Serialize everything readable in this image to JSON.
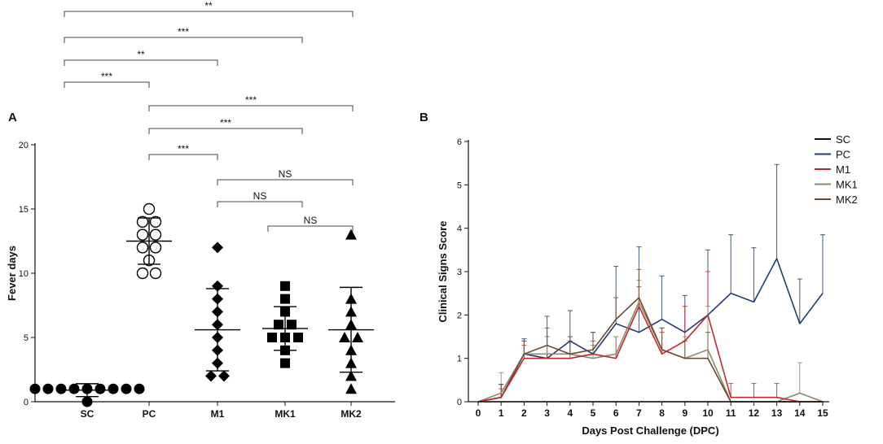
{
  "chart_data": [
    {
      "panel": "A",
      "type": "scatter",
      "ylabel": "Fever days",
      "xlabel": "",
      "ylim": [
        0,
        20
      ],
      "yticks": [
        0,
        5,
        10,
        15,
        20
      ],
      "categories": [
        "SC",
        "PC",
        "M1",
        "MK1",
        "MK2"
      ],
      "series": [
        {
          "name": "SC",
          "marker": "circle-filled",
          "values": [
            1,
            1,
            1,
            1,
            1,
            1,
            1,
            1,
            1,
            0
          ],
          "mean": 0.9,
          "sd": 0.5
        },
        {
          "name": "PC",
          "marker": "circle-open",
          "values": [
            15,
            14,
            14,
            13,
            13,
            12,
            12,
            11,
            10,
            10
          ],
          "mean": 12.5,
          "sd": 1.8
        },
        {
          "name": "M1",
          "marker": "diamond",
          "values": [
            12,
            9,
            8,
            7,
            6,
            5,
            4,
            3,
            2,
            2
          ],
          "mean": 5.6,
          "sd": 3.2
        },
        {
          "name": "MK1",
          "marker": "square",
          "values": [
            9,
            8,
            7,
            6,
            6,
            5,
            5,
            5,
            4,
            3
          ],
          "mean": 5.7,
          "sd": 1.7
        },
        {
          "name": "MK2",
          "marker": "triangle",
          "values": [
            13,
            8,
            7,
            6,
            5,
            5,
            4,
            3,
            2,
            1
          ],
          "mean": 5.6,
          "sd": 3.3
        }
      ],
      "significance": [
        {
          "from": "SC",
          "to": "MK2",
          "label": "**"
        },
        {
          "from": "SC",
          "to": "MK1",
          "label": "***"
        },
        {
          "from": "SC",
          "to": "M1",
          "label": "**"
        },
        {
          "from": "SC",
          "to": "PC",
          "label": "***"
        },
        {
          "from": "PC",
          "to": "MK2",
          "label": "***"
        },
        {
          "from": "PC",
          "to": "MK1",
          "label": "***"
        },
        {
          "from": "PC",
          "to": "M1",
          "label": "***"
        },
        {
          "from": "M1",
          "to": "MK2",
          "label": "NS"
        },
        {
          "from": "M1",
          "to": "MK1",
          "label": "NS"
        },
        {
          "from": "MK1",
          "to": "MK2",
          "label": "NS"
        }
      ]
    },
    {
      "panel": "B",
      "type": "line",
      "xlabel": "Days Post Challenge (DPC)",
      "ylabel": "Clinical Signs Score",
      "xlim": [
        0,
        15
      ],
      "ylim": [
        0,
        6
      ],
      "x": [
        0,
        1,
        2,
        3,
        4,
        5,
        6,
        7,
        8,
        9,
        10,
        11,
        12,
        13,
        14,
        15
      ],
      "yticks": [
        0,
        1,
        2,
        3,
        4,
        5,
        6
      ],
      "legend_position": "top-right",
      "series": [
        {
          "name": "SC",
          "color": "#111111",
          "values": [
            0,
            0,
            0,
            0,
            0,
            0,
            0,
            0,
            0,
            0,
            0,
            0,
            0,
            0,
            0,
            0
          ],
          "err": [
            0,
            0,
            0,
            0,
            0,
            0,
            0,
            0,
            0,
            0,
            0,
            0,
            0,
            0,
            0,
            0
          ]
        },
        {
          "name": "PC",
          "color": "#1f3d73",
          "values": [
            0,
            0.1,
            1.1,
            1.0,
            1.4,
            1.1,
            1.8,
            1.6,
            1.9,
            1.6,
            2.0,
            2.5,
            2.3,
            3.3,
            1.8,
            2.5
          ],
          "err": [
            0,
            0.3,
            0.35,
            0.97,
            0.7,
            0.5,
            1.32,
            1.97,
            1.0,
            0.85,
            1.5,
            1.35,
            1.25,
            2.17,
            1.03,
            1.35
          ]
        },
        {
          "name": "M1",
          "color": "#c0282d",
          "values": [
            0,
            0.1,
            1.0,
            1.0,
            1.0,
            1.1,
            1.0,
            2.2,
            1.1,
            1.4,
            2.0,
            0.1,
            0.1,
            0.1,
            0.0,
            0.0
          ],
          "err": [
            0,
            0.2,
            0.3,
            0.5,
            0.4,
            0.3,
            0.5,
            0.45,
            0.5,
            0.8,
            1.0,
            0.32,
            0.32,
            0.32,
            0,
            0
          ]
        },
        {
          "name": "MK1",
          "color": "#8c8a6e",
          "values": [
            0,
            0.2,
            1.1,
            1.1,
            1.1,
            1.0,
            1.1,
            2.3,
            1.2,
            1.0,
            1.2,
            0.0,
            0.0,
            0.0,
            0.2,
            0.0
          ],
          "err": [
            0,
            0.47,
            0.3,
            0.4,
            0.4,
            0.3,
            0.4,
            0.5,
            0.5,
            0.5,
            1.0,
            0,
            0,
            0,
            0.7,
            0
          ]
        },
        {
          "name": "MK2",
          "color": "#6e4b2d",
          "values": [
            0,
            0.1,
            1.1,
            1.3,
            1.1,
            1.2,
            1.9,
            2.4,
            1.2,
            1.0,
            1.0,
            0.0,
            0.0,
            0.0,
            0.0,
            0.0
          ],
          "err": [
            0,
            0.3,
            0.3,
            0.4,
            0.4,
            0.4,
            0.5,
            0.65,
            0.5,
            0.4,
            0.6,
            0,
            0,
            0,
            0,
            0
          ]
        }
      ]
    }
  ]
}
